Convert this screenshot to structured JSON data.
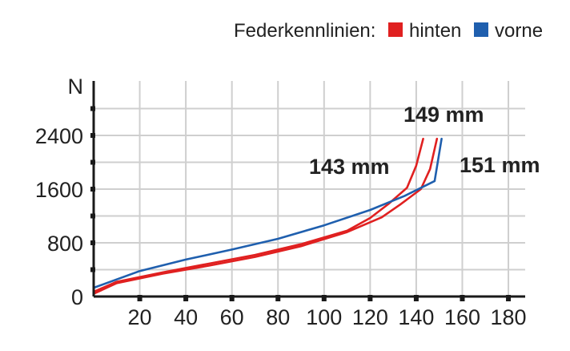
{
  "chart_data": {
    "type": "line",
    "title": "",
    "xlabel": "",
    "ylabel": "N",
    "xlim": [
      0,
      185
    ],
    "ylim": [
      0,
      2900
    ],
    "x_ticks": [
      20,
      40,
      60,
      80,
      100,
      120,
      140,
      160,
      180
    ],
    "y_ticks": [
      0,
      800,
      1600,
      2400
    ],
    "grid": true,
    "legend": {
      "title": "Federkennlinien:",
      "position": "top-right",
      "entries": [
        {
          "label": "hinten",
          "color": "#e02020"
        },
        {
          "label": "vorne",
          "color": "#1f5fae"
        }
      ]
    },
    "series": [
      {
        "legend": "hinten",
        "color": "#e02020",
        "points": [
          [
            0,
            70
          ],
          [
            10,
            220
          ],
          [
            30,
            360
          ],
          [
            50,
            490
          ],
          [
            70,
            620
          ],
          [
            90,
            780
          ],
          [
            110,
            980
          ],
          [
            120,
            1170
          ],
          [
            128,
            1380
          ],
          [
            136,
            1620
          ],
          [
            140,
            1950
          ],
          [
            143,
            2350
          ]
        ]
      },
      {
        "legend": "hinten",
        "color": "#e02020",
        "points": [
          [
            0,
            40
          ],
          [
            10,
            200
          ],
          [
            30,
            340
          ],
          [
            50,
            460
          ],
          [
            70,
            590
          ],
          [
            90,
            750
          ],
          [
            110,
            960
          ],
          [
            125,
            1180
          ],
          [
            133,
            1370
          ],
          [
            142,
            1600
          ],
          [
            146,
            1900
          ],
          [
            149,
            2350
          ]
        ]
      },
      {
        "legend": "vorne",
        "color": "#1f5fae",
        "points": [
          [
            0,
            130
          ],
          [
            20,
            380
          ],
          [
            40,
            550
          ],
          [
            60,
            700
          ],
          [
            80,
            860
          ],
          [
            100,
            1060
          ],
          [
            120,
            1290
          ],
          [
            135,
            1500
          ],
          [
            148,
            1720
          ],
          [
            151,
            2350
          ]
        ]
      }
    ],
    "annotations": [
      {
        "text": "149 mm",
        "at": [
          149,
          2720
        ]
      },
      {
        "text": "143 mm",
        "at": [
          115,
          1930
        ]
      },
      {
        "text": "151 mm",
        "at": [
          162,
          1930
        ]
      }
    ]
  }
}
